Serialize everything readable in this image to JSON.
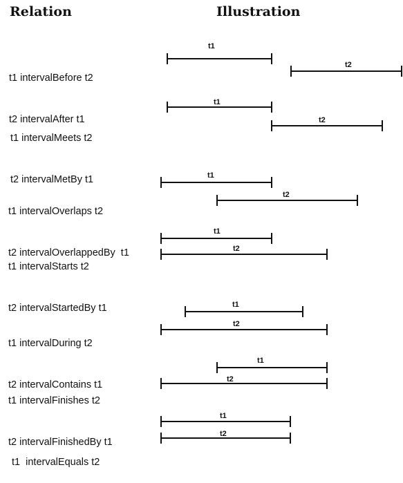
{
  "headers": {
    "relation": "Relation",
    "illustration": "Illustration"
  },
  "relations": [
    {
      "line1": "t1 intervalBefore t2",
      "line2": "t2 intervalAfter t1",
      "bar1": "t1",
      "bar2": "t2"
    },
    {
      "line1": "t1 intervalMeets t2",
      "line2": "t2 intervalMetBy t1",
      "bar1": "t1",
      "bar2": "t2"
    },
    {
      "line1": "t1 intervalOverlaps t2",
      "line2": "t2 intervalOverlappedBy  t1",
      "bar1": "t1",
      "bar2": "t2"
    },
    {
      "line1": "t1 intervalStarts t2",
      "line2": "t2 intervalStartedBy t1",
      "bar1": "t1",
      "bar2": "t2"
    },
    {
      "line1": "t1 intervalDuring t2",
      "line2": "t2 intervalContains t1",
      "bar1": "t1",
      "bar2": "t2"
    },
    {
      "line1": "t1 intervalFinishes t2",
      "line2": "t2 intervalFinishedBy t1",
      "bar1": "t1",
      "bar2": "t2"
    },
    {
      "line1": "t1  intervalEquals t2",
      "line2": "",
      "bar1": "t1",
      "bar2": "t2"
    }
  ]
}
